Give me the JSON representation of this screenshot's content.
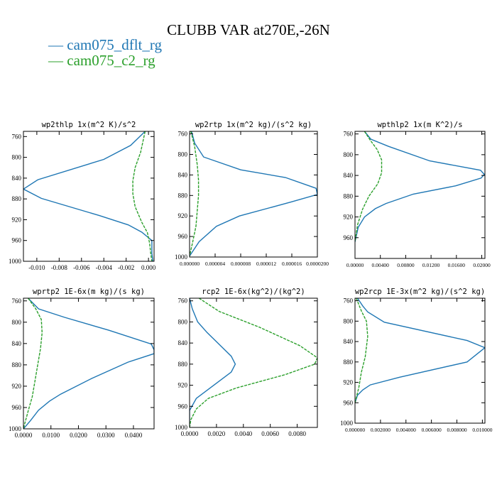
{
  "title": "CLUBB VAR at270E,-26N",
  "legend": [
    {
      "name": "cam075_dflt_rg",
      "color": "#1f77b4"
    },
    {
      "name": "cam075_c2_rg",
      "color": "#2ca02c"
    }
  ],
  "chart_data": [
    {
      "type": "line",
      "title": "wp2thlp  1x(m^2 K)/s^2",
      "xlim": [
        -0.0112,
        0.0005
      ],
      "ylim": [
        1000,
        750
      ],
      "xticks": [
        -0.01,
        -0.008,
        -0.006,
        -0.004,
        -0.002,
        0.0
      ],
      "xtick_labels": [
        "-0.010",
        "-0.008",
        "-0.006",
        "-0.004",
        "-0.002",
        "0.000"
      ],
      "yticks": [
        760,
        800,
        840,
        880,
        920,
        960,
        1000
      ],
      "series": [
        {
          "name": "cam075_dflt_rg",
          "x": [
            -0.0003,
            -0.0016,
            -0.004,
            -0.0099,
            -0.0112,
            -0.0096,
            -0.0044,
            -0.0018,
            -0.0006,
            0.0003,
            0.0003,
            0.0004
          ],
          "y": [
            750,
            777,
            804,
            843,
            861,
            879,
            912,
            930,
            944,
            960,
            985,
            1000
          ]
        },
        {
          "name": "cam075_c2_rg",
          "x": [
            -0.0003,
            -0.0007,
            -0.0012,
            -0.0014,
            -0.0014,
            -0.0012,
            -0.0006,
            -0.0001,
            0.0001,
            0.0002,
            0.0003
          ],
          "y": [
            750,
            790,
            820,
            845,
            870,
            895,
            925,
            945,
            965,
            985,
            1000
          ]
        }
      ]
    },
    {
      "type": "line",
      "title": "wp2rtp  1x(m^2 kg)/(s^2 kg)",
      "xlim": [
        0.0,
        2e-05
      ],
      "ylim": [
        1000,
        755
      ],
      "xticks": [
        0.0,
        4e-06,
        8e-06,
        1.2e-05,
        1.6e-05,
        2e-05
      ],
      "xtick_labels": [
        "0.000000",
        "0.000004",
        "0.000008",
        "0.000012",
        "0.000016",
        "0.0000200"
      ],
      "yticks": [
        760,
        800,
        840,
        880,
        920,
        960,
        1000
      ],
      "series": [
        {
          "name": "cam075_dflt_rg",
          "x": [
            3e-07,
            8e-07,
            2.2e-06,
            8e-06,
            1.5e-05,
            1.98e-05,
            2e-05,
            1.58e-05,
            7.8e-06,
            4.2e-06,
            1.5e-06,
            0.0
          ],
          "y": [
            755,
            778,
            805,
            830,
            845,
            866,
            878,
            893,
            920,
            940,
            970,
            998
          ]
        },
        {
          "name": "cam075_c2_rg",
          "x": [
            2e-07,
            8e-07,
            1.2e-06,
            1.4e-06,
            1.4e-06,
            1.2e-06,
            1e-06,
            5e-07,
            0.0
          ],
          "y": [
            755,
            785,
            820,
            850,
            880,
            910,
            940,
            970,
            998
          ]
        }
      ]
    },
    {
      "type": "line",
      "title": "wpthlp2  1x(m K^2)/s",
      "xlim": [
        0.0,
        0.0205
      ],
      "ylim": [
        1000,
        755
      ],
      "xticks": [
        0.0,
        0.004,
        0.008,
        0.012,
        0.016,
        0.02
      ],
      "xtick_labels": [
        "0.00000",
        "0.00400",
        "0.00800",
        "0.01200",
        "0.01600",
        "0.02000"
      ],
      "yticks": [
        760,
        800,
        840,
        880,
        920,
        960
      ],
      "series": [
        {
          "name": "cam075_dflt_rg",
          "x": [
            0.0015,
            0.0025,
            0.0053,
            0.0118,
            0.0198,
            0.0204,
            0.0199,
            0.0159,
            0.0092,
            0.0049,
            0.0032,
            0.0015,
            0.0005,
            0.0
          ],
          "y": [
            755,
            770,
            784,
            812,
            830,
            838,
            845,
            860,
            876,
            894,
            904,
            920,
            940,
            968
          ]
        },
        {
          "name": "cam075_c2_rg",
          "x": [
            0.0015,
            0.0024,
            0.0035,
            0.0042,
            0.0042,
            0.0036,
            0.0022,
            0.0012,
            0.0004,
            0.0
          ],
          "y": [
            755,
            772,
            790,
            810,
            835,
            856,
            880,
            905,
            935,
            968
          ]
        }
      ]
    },
    {
      "type": "line",
      "title": "wprtp2  1E-6x(m kg)/(s kg)",
      "xlim": [
        0.0,
        0.0475
      ],
      "ylim": [
        1000,
        755
      ],
      "xticks": [
        0.0,
        0.01,
        0.02,
        0.03,
        0.04
      ],
      "xtick_labels": [
        "0.0000",
        "0.0100",
        "0.0200",
        "0.0300",
        "0.0400"
      ],
      "yticks": [
        760,
        800,
        840,
        880,
        920,
        960,
        1000
      ],
      "series": [
        {
          "name": "cam075_dflt_rg",
          "x": [
            0.0017,
            0.0055,
            0.015,
            0.031,
            0.0465,
            0.0475,
            0.0475,
            0.038,
            0.025,
            0.0135,
            0.0095,
            0.0055,
            0.0025,
            0.0
          ],
          "y": [
            755,
            775,
            791,
            815,
            841,
            852,
            859,
            875,
            905,
            935,
            948,
            965,
            985,
            1000
          ]
        },
        {
          "name": "cam075_c2_rg",
          "x": [
            0.0017,
            0.0045,
            0.0065,
            0.0068,
            0.0062,
            0.0052,
            0.0042,
            0.0032,
            0.0018,
            0.0005,
            0.0
          ],
          "y": [
            755,
            775,
            795,
            820,
            850,
            880,
            910,
            940,
            965,
            990,
            1000
          ]
        }
      ]
    },
    {
      "type": "line",
      "title": "rcp2  1E-6x(kg^2)/(kg^2)",
      "xlim": [
        0.0,
        0.0095
      ],
      "ylim": [
        1000,
        755
      ],
      "xticks": [
        0.0,
        0.002,
        0.004,
        0.006,
        0.008
      ],
      "xtick_labels": [
        "0.0000",
        "0.0020",
        "0.0040",
        "0.0060",
        "0.0080"
      ],
      "yticks": [
        760,
        800,
        840,
        880,
        920,
        960,
        1000
      ],
      "series": [
        {
          "name": "cam075_dflt_rg",
          "x": [
            0.0,
            0.0002,
            0.0006,
            0.0013,
            0.0023,
            0.0031,
            0.0034,
            0.0031,
            0.0018,
            0.0005,
            0.0,
            0.0
          ],
          "y": [
            755,
            775,
            800,
            820,
            845,
            865,
            880,
            895,
            920,
            945,
            968,
            1000
          ]
        },
        {
          "name": "cam075_c2_rg",
          "x": [
            0.0007,
            0.0022,
            0.0052,
            0.0082,
            0.0095,
            0.0093,
            0.0071,
            0.0035,
            0.0014,
            0.0005,
            0.0001,
            0.0
          ],
          "y": [
            755,
            780,
            810,
            845,
            868,
            880,
            900,
            925,
            945,
            965,
            985,
            1000
          ]
        }
      ]
    },
    {
      "type": "line",
      "title": "wp2rcp  1E-3x(m^2 kg)/(s^2 kg)",
      "xlim": [
        0.0,
        0.0102
      ],
      "ylim": [
        1000,
        755
      ],
      "xticks": [
        0.0,
        0.002,
        0.004,
        0.006,
        0.008,
        0.01
      ],
      "xtick_labels": [
        "0.000000",
        "0.002000",
        "0.004000",
        "0.006000",
        "0.008000",
        "0.010000"
      ],
      "yticks": [
        760,
        800,
        840,
        880,
        920,
        960,
        1000
      ],
      "series": [
        {
          "name": "cam075_dflt_rg",
          "x": [
            0.0002,
            0.0006,
            0.001,
            0.0023,
            0.0088,
            0.0102,
            0.0088,
            0.0035,
            0.0012,
            0.0006,
            0.0002,
            0.0
          ],
          "y": [
            755,
            770,
            782,
            802,
            838,
            852,
            880,
            910,
            925,
            935,
            945,
            960
          ]
        },
        {
          "name": "cam075_c2_rg",
          "x": [
            0.0001,
            0.0005,
            0.0009,
            0.001,
            0.0008,
            0.0005,
            0.0003,
            0.0001,
            0.0
          ],
          "y": [
            755,
            780,
            800,
            830,
            870,
            900,
            930,
            950,
            960
          ]
        }
      ]
    }
  ]
}
